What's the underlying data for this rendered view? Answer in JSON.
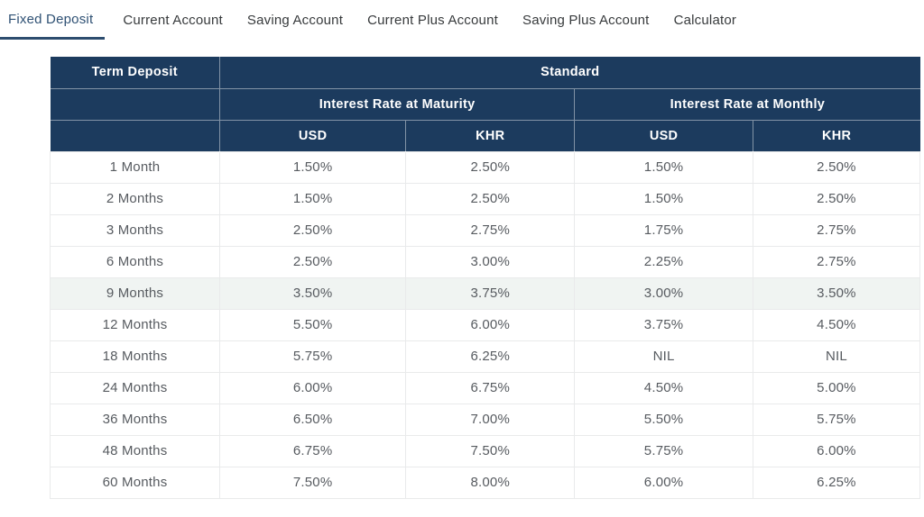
{
  "tabs": [
    {
      "label": "Fixed Deposit",
      "active": true
    },
    {
      "label": "Current Account",
      "active": false
    },
    {
      "label": "Saving Account",
      "active": false
    },
    {
      "label": "Current Plus Account",
      "active": false
    },
    {
      "label": "Saving Plus Account",
      "active": false
    },
    {
      "label": "Calculator",
      "active": false
    }
  ],
  "table": {
    "corner_header": "Term Deposit",
    "group_header": "Standard",
    "subgroups": [
      "Interest Rate at Maturity",
      "Interest Rate at Monthly"
    ],
    "currency_headers": [
      "USD",
      "KHR",
      "USD",
      "KHR"
    ],
    "rows": [
      {
        "term": "1 Month",
        "values": [
          "1.50%",
          "2.50%",
          "1.50%",
          "2.50%"
        ]
      },
      {
        "term": "2 Months",
        "values": [
          "1.50%",
          "2.50%",
          "1.50%",
          "2.50%"
        ]
      },
      {
        "term": "3 Months",
        "values": [
          "2.50%",
          "2.75%",
          "1.75%",
          "2.75%"
        ]
      },
      {
        "term": "6 Months",
        "values": [
          "2.50%",
          "3.00%",
          "2.25%",
          "2.75%"
        ]
      },
      {
        "term": "9 Months",
        "values": [
          "3.50%",
          "3.75%",
          "3.00%",
          "3.50%"
        ]
      },
      {
        "term": "12 Months",
        "values": [
          "5.50%",
          "6.00%",
          "3.75%",
          "4.50%"
        ]
      },
      {
        "term": "18 Months",
        "values": [
          "5.75%",
          "6.25%",
          "NIL",
          "NIL"
        ]
      },
      {
        "term": "24 Months",
        "values": [
          "6.00%",
          "6.75%",
          "4.50%",
          "5.00%"
        ]
      },
      {
        "term": "36 Months",
        "values": [
          "6.50%",
          "7.00%",
          "5.50%",
          "5.75%"
        ]
      },
      {
        "term": "48 Months",
        "values": [
          "6.75%",
          "7.50%",
          "5.75%",
          "6.00%"
        ]
      },
      {
        "term": "60 Months",
        "values": [
          "7.50%",
          "8.00%",
          "6.00%",
          "6.25%"
        ]
      }
    ],
    "highlighted_row_term": "9 Months"
  },
  "colors": {
    "header_background": "#1c3b5e",
    "header_text": "#ffffff",
    "active_tab": "#2f5174",
    "tab_underline": "#2d4d6f",
    "body_text": "#575b60",
    "grid_border": "#e9eaeb",
    "highlight_row": "#f0f4f2"
  }
}
